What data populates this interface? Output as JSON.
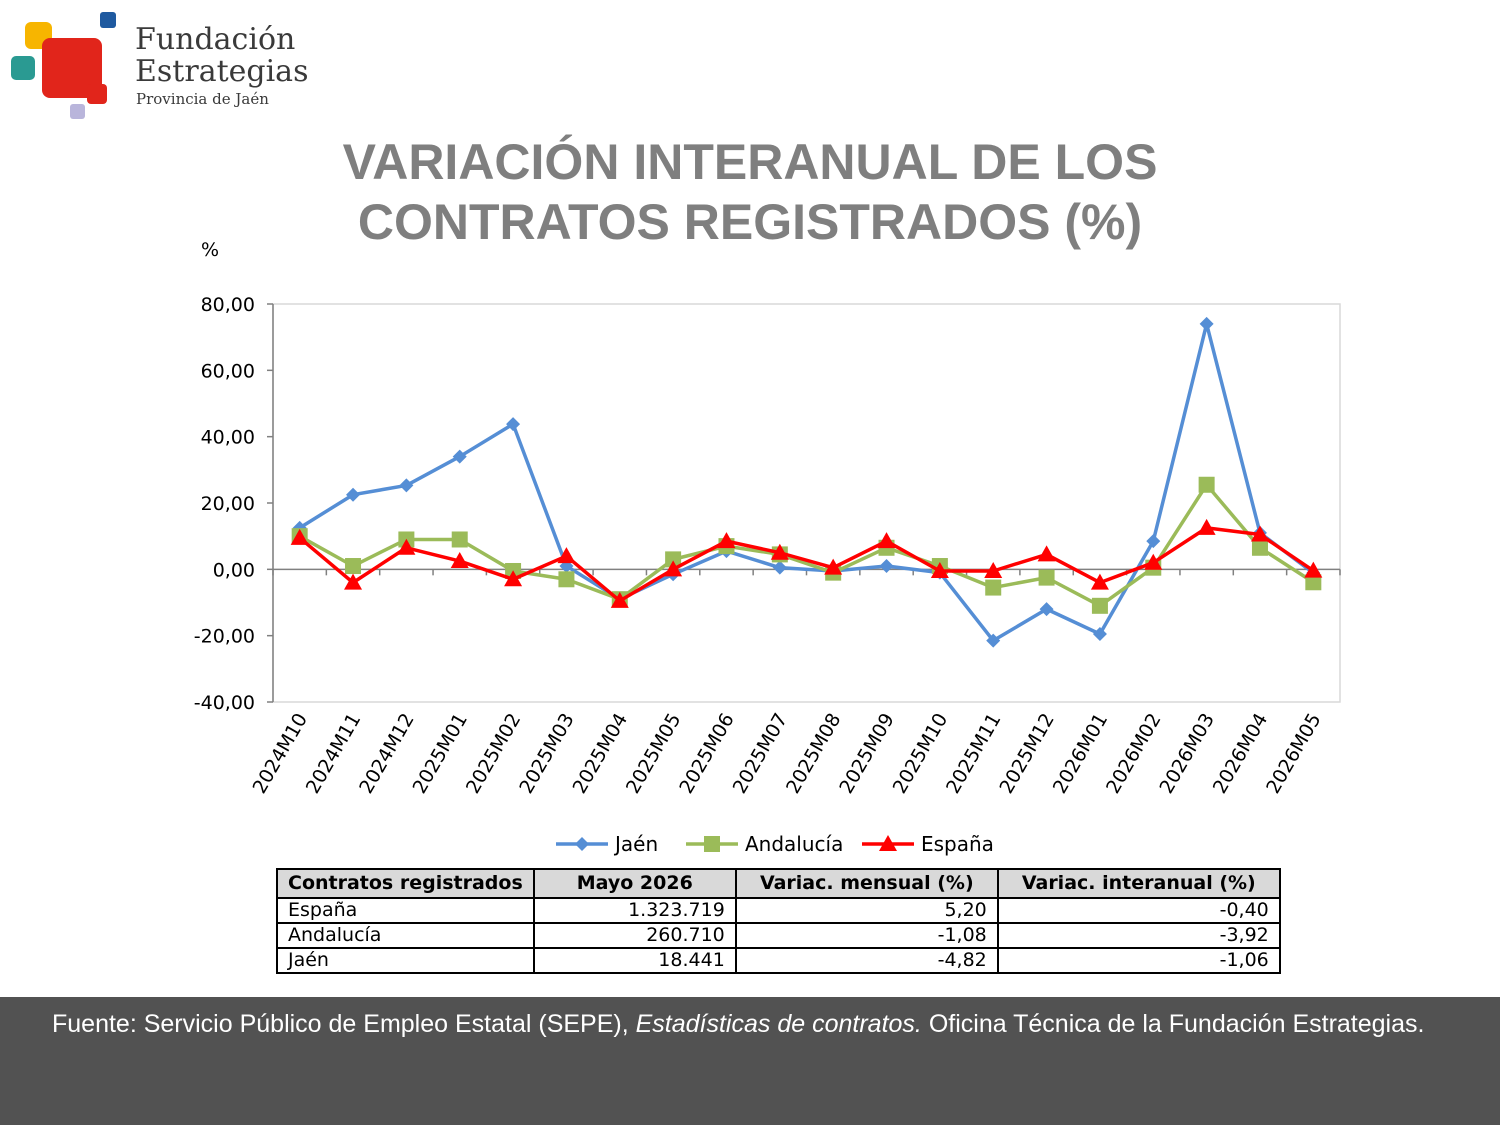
{
  "logo": {
    "line1": "Fundación",
    "line2": "Estrategias",
    "line3": "Provincia de Jaén"
  },
  "title": "VARIACIÓN INTERANUAL DE LOS CONTRATOS REGISTRADOS (%)",
  "chart_data": {
    "type": "line",
    "title": "VARIACIÓN INTERANUAL DE LOS CONTRATOS REGISTRADOS (%)",
    "ylabel": "%",
    "xlabel": "",
    "ylim": [
      -40,
      80
    ],
    "yticks": [
      "80,00",
      "60,00",
      "40,00",
      "20,00",
      "0,00",
      "-20,00",
      "-40,00"
    ],
    "ytick_values": [
      80,
      60,
      40,
      20,
      0,
      -20,
      -40
    ],
    "grid": false,
    "legend_position": "bottom",
    "categories": [
      "2024M10",
      "2024M11",
      "2024M12",
      "2025M01",
      "2025M02",
      "2025M03",
      "2025M04",
      "2025M05",
      "2025M06",
      "2025M07",
      "2025M08",
      "2025M09",
      "2025M10",
      "2025M11",
      "2025M12",
      "2026M01",
      "2026M02",
      "2026M03",
      "2026M04",
      "2026M05"
    ],
    "series": [
      {
        "name": "Jaén",
        "color": "#558ed5",
        "marker": "diamond",
        "values": [
          12.5,
          22.5,
          25.3,
          34.0,
          43.8,
          1.0,
          -9.0,
          -1.5,
          5.5,
          0.5,
          -0.5,
          1.0,
          -1.0,
          -21.5,
          -12.0,
          -19.5,
          8.5,
          74.0,
          11.0,
          -1.1
        ]
      },
      {
        "name": "Andalucía",
        "color": "#9bbb59",
        "marker": "square",
        "values": [
          10.0,
          1.0,
          9.0,
          9.0,
          -0.5,
          -3.0,
          -9.0,
          3.0,
          7.0,
          4.5,
          -1.0,
          6.5,
          1.0,
          -5.5,
          -2.5,
          -11.0,
          0.5,
          25.5,
          6.5,
          -3.9
        ]
      },
      {
        "name": "España",
        "color": "#ff0000",
        "marker": "triangle",
        "values": [
          9.5,
          -4.0,
          6.5,
          2.5,
          -3.0,
          4.0,
          -9.5,
          0.0,
          8.5,
          5.0,
          0.5,
          8.5,
          -0.5,
          -0.5,
          4.5,
          -4.0,
          2.0,
          12.5,
          10.5,
          -0.4
        ]
      }
    ]
  },
  "table": {
    "headers": [
      "Contratos registrados",
      "Mayo 2026",
      "Variac. mensual (%)",
      "Variac. interanual (%)"
    ],
    "rows": [
      [
        "España",
        "1.323.719",
        "5,20",
        "-0,40"
      ],
      [
        "Andalucía",
        "260.710",
        "-1,08",
        "-3,92"
      ],
      [
        "Jaén",
        "18.441",
        "-4,82",
        "-1,06"
      ]
    ]
  },
  "footer": {
    "prefix": "Fuente: Servicio Público de Empleo Estatal (SEPE), ",
    "italic": "Estadísticas de contratos.",
    "suffix": " Oficina Técnica de la Fundación Estrategias."
  },
  "colors": {
    "title": "#7f7f7f",
    "footer_bg": "#525252",
    "table_header_bg": "#d9d9d9"
  }
}
